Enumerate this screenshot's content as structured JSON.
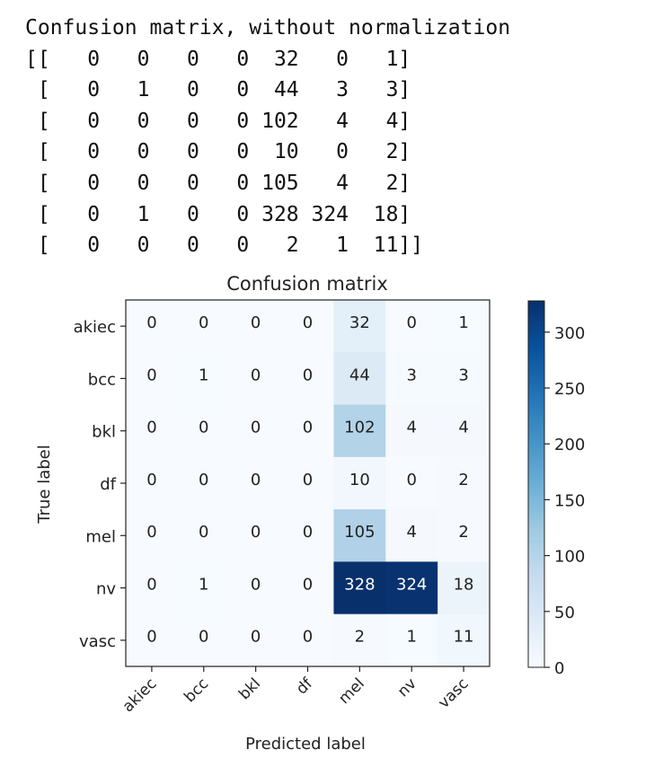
{
  "console": {
    "title": "Confusion matrix, without normalization"
  },
  "chart_data": {
    "type": "heatmap",
    "title": "Confusion matrix",
    "xlabel": "Predicted label",
    "ylabel": "True label",
    "x_categories": [
      "akiec",
      "bcc",
      "bkl",
      "df",
      "mel",
      "nv",
      "vasc"
    ],
    "y_categories": [
      "akiec",
      "bcc",
      "bkl",
      "df",
      "mel",
      "nv",
      "vasc"
    ],
    "matrix": [
      [
        0,
        0,
        0,
        0,
        32,
        0,
        1
      ],
      [
        0,
        1,
        0,
        0,
        44,
        3,
        3
      ],
      [
        0,
        0,
        0,
        0,
        102,
        4,
        4
      ],
      [
        0,
        0,
        0,
        0,
        10,
        0,
        2
      ],
      [
        0,
        0,
        0,
        0,
        105,
        4,
        2
      ],
      [
        0,
        1,
        0,
        0,
        328,
        324,
        18
      ],
      [
        0,
        0,
        0,
        0,
        2,
        1,
        11
      ]
    ],
    "colormap": "Blues",
    "color_low": "#f7fbff",
    "color_high": "#08306b",
    "colorbar": {
      "range": [
        0,
        328
      ],
      "ticks": [
        0,
        50,
        100,
        150,
        200,
        250,
        300
      ]
    },
    "x_tick_rotation_deg": 45
  }
}
